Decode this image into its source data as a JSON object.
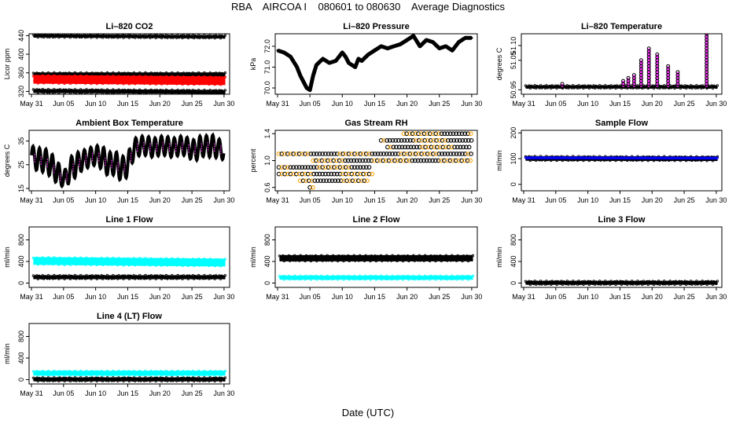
{
  "page": {
    "title": "RBA    AIRCOA I    080601 to 080630    Average Diagnostics",
    "xlabel": "Date (UTC)"
  },
  "x_ticks": [
    "May 31",
    "Jun 05",
    "Jun 10",
    "Jun 15",
    "Jun 20",
    "Jun 25",
    "Jun 30"
  ],
  "x_range_days": [
    0,
    30.5
  ],
  "chart_data": [
    {
      "id": "co2",
      "type": "scatter",
      "title": "Li–820 CO2",
      "ylabel": "Licor ppm",
      "ylim": [
        314,
        444
      ],
      "yticks": [
        "320",
        "360",
        "400",
        "440"
      ],
      "ytick_values": [
        320,
        360,
        400,
        440
      ],
      "series": [
        {
          "kind": "band",
          "color": "#000000",
          "y_start": 439.5,
          "y_end": 437.5,
          "thickness": 4
        },
        {
          "kind": "band",
          "color": "#000000",
          "y_start": 355,
          "y_end": 355,
          "thickness": 7
        },
        {
          "kind": "band",
          "color": "#ff0000",
          "y_start": 346,
          "y_end": 343,
          "thickness": 11
        },
        {
          "kind": "band",
          "color": "#000000",
          "y_start": 321,
          "y_end": 319,
          "thickness": 5
        }
      ]
    },
    {
      "id": "pressure",
      "type": "line",
      "title": "Li–820 Pressure",
      "ylabel": "kPa",
      "ylim": [
        69.7,
        72.6
      ],
      "yticks": [
        "70.0",
        "71.0",
        "72.0"
      ],
      "ytick_values": [
        70.0,
        71.0,
        72.0
      ],
      "series": [
        {
          "kind": "curve",
          "color": "#000000",
          "x": [
            0,
            1,
            2,
            3,
            3.5,
            4,
            4.5,
            5,
            5.5,
            6,
            7,
            8,
            9,
            10,
            10.5,
            11,
            12,
            12.5,
            13,
            14,
            15,
            16,
            17,
            18,
            19,
            20,
            21,
            22,
            23,
            24,
            25,
            26,
            27,
            28,
            29,
            30
          ],
          "y": [
            71.8,
            71.7,
            71.5,
            71.0,
            70.6,
            70.3,
            70.0,
            69.9,
            70.6,
            71.1,
            71.4,
            71.2,
            71.3,
            71.7,
            71.5,
            71.2,
            71.0,
            71.4,
            71.3,
            71.6,
            71.8,
            72.0,
            71.9,
            72.0,
            72.1,
            72.3,
            72.5,
            72.0,
            72.3,
            72.2,
            71.9,
            72.0,
            71.8,
            72.2,
            72.4,
            72.4
          ]
        }
      ]
    },
    {
      "id": "temperature",
      "type": "scatter",
      "title": "Li–820 Temperature",
      "ylabel": "degrees C",
      "ylim": [
        50.935,
        51.14
      ],
      "yticks": [
        "50.95",
        "51.05",
        "51.10"
      ],
      "ytick_values": [
        50.95,
        51.05,
        51.1
      ],
      "series": [
        {
          "kind": "band",
          "color": "#000000",
          "y_start": 50.96,
          "y_end": 50.96,
          "thickness": 4
        },
        {
          "kind": "spikes",
          "color": "#ff33ff",
          "base": 50.96,
          "x": [
            6,
            15.5,
            16.3,
            17.2,
            18.3,
            19.5,
            20.8,
            22.5,
            24.0,
            28.5
          ],
          "y": [
            50.97,
            50.98,
            50.99,
            51.0,
            51.05,
            51.09,
            51.07,
            51.03,
            51.01,
            51.14
          ]
        }
      ]
    },
    {
      "id": "ambient_box",
      "type": "line",
      "title": "Ambient Box Temperature",
      "ylabel": "degrees C",
      "ylim": [
        14.0,
        39.5
      ],
      "yticks": [
        "15",
        "25",
        "35"
      ],
      "ytick_values": [
        15,
        25,
        35
      ],
      "series": [
        {
          "kind": "diurnal",
          "color": "#000000",
          "alt_color": "#ff33ff",
          "x": [
            0,
            1,
            2,
            3,
            4,
            4.5,
            5,
            5.5,
            6,
            7,
            8,
            9,
            10,
            11,
            12,
            13,
            14,
            15,
            16,
            17,
            18,
            19,
            20,
            21,
            22,
            23,
            24,
            25,
            26,
            27,
            28,
            29,
            30
          ],
          "center": [
            29,
            27,
            27,
            25,
            22,
            20,
            19,
            20,
            23,
            25,
            27,
            28,
            29,
            28,
            25,
            26,
            23,
            25,
            32,
            33,
            33,
            32,
            33,
            33,
            32,
            33,
            33,
            31,
            32,
            33,
            33,
            32,
            31
          ],
          "amplitude": [
            4,
            5,
            5,
            5,
            5,
            4,
            3,
            4,
            5,
            5,
            4,
            4,
            4,
            5,
            5,
            5,
            5,
            5,
            4,
            4,
            4,
            4,
            4,
            4,
            4,
            4,
            4,
            4,
            5,
            4,
            5,
            4,
            4
          ]
        }
      ]
    },
    {
      "id": "rh",
      "type": "scatter",
      "title": "Gas Stream RH",
      "ylabel": "percent",
      "ylim": [
        0.55,
        1.45
      ],
      "yticks": [
        "0.6",
        "1.0",
        "1.4"
      ],
      "ytick_values": [
        0.6,
        1.0,
        1.4
      ],
      "series": [
        {
          "kind": "levels",
          "color": "#000000",
          "alt_color": "#ffa500",
          "levels": [
            {
              "y": 1.4,
              "x_start": 19.5,
              "x_end": 30.0
            },
            {
              "y": 1.3,
              "x_start": 16.0,
              "x_end": 30.0
            },
            {
              "y": 1.2,
              "x_start": 17.0,
              "x_end": 30.0
            },
            {
              "y": 1.1,
              "x_start": 0.2,
              "x_end": 30.0
            },
            {
              "y": 1.0,
              "x_start": 5.5,
              "x_end": 30.0
            },
            {
              "y": 0.9,
              "x_start": 0.2,
              "x_end": 14.5
            },
            {
              "y": 0.8,
              "x_start": 0.2,
              "x_end": 15.0
            },
            {
              "y": 0.7,
              "x_start": 3.5,
              "x_end": 14.0
            },
            {
              "y": 0.6,
              "x_start": 5.0,
              "x_end": 5.8
            }
          ]
        }
      ]
    },
    {
      "id": "sample_flow",
      "type": "line",
      "title": "Sample Flow",
      "ylabel": "ml/min",
      "ylim": [
        -25,
        210
      ],
      "yticks": [
        "0",
        "100",
        "200"
      ],
      "ytick_values": [
        0,
        100,
        200
      ],
      "series": [
        {
          "kind": "band",
          "color": "#000000",
          "y_start": 101,
          "y_end": 100,
          "thickness": 6
        },
        {
          "kind": "band",
          "color": "#0000ff",
          "y_start": 103,
          "y_end": 102,
          "thickness": 1
        }
      ]
    },
    {
      "id": "line1",
      "type": "scatter",
      "title": "Line 1 Flow",
      "ylabel": "ml/min",
      "ylim": [
        -80,
        1040
      ],
      "yticks": [
        "0",
        "400",
        "800"
      ],
      "ytick_values": [
        0,
        400,
        800
      ],
      "series": [
        {
          "kind": "band",
          "color": "#00ffff",
          "y_start": 410,
          "y_end": 380,
          "thickness": 10
        },
        {
          "kind": "band",
          "color": "#000000",
          "y_start": 110,
          "y_end": 110,
          "thickness": 5
        }
      ]
    },
    {
      "id": "line2",
      "type": "scatter",
      "title": "Line 2 Flow",
      "ylabel": "ml/min",
      "ylim": [
        -80,
        1040
      ],
      "yticks": [
        "0",
        "400",
        "800"
      ],
      "ytick_values": [
        0,
        400,
        800
      ],
      "series": [
        {
          "kind": "band",
          "color": "#000000",
          "y_start": 460,
          "y_end": 460,
          "thickness": 8
        },
        {
          "kind": "band",
          "color": "#00ffff",
          "y_start": 100,
          "y_end": 100,
          "thickness": 5
        }
      ]
    },
    {
      "id": "line3",
      "type": "scatter",
      "title": "Line 3 Flow",
      "ylabel": "ml/min",
      "ylim": [
        -80,
        1040
      ],
      "yticks": [
        "0",
        "400",
        "800"
      ],
      "ytick_values": [
        0,
        400,
        800
      ],
      "series": [
        {
          "kind": "band",
          "color": "#000000",
          "y_start": 5,
          "y_end": 5,
          "thickness": 5
        }
      ]
    },
    {
      "id": "line4",
      "type": "scatter",
      "title": "Line 4 (LT) Flow",
      "ylabel": "ml/min",
      "ylim": [
        -80,
        1040
      ],
      "yticks": [
        "0",
        "400",
        "800"
      ],
      "ytick_values": [
        0,
        400,
        800
      ],
      "series": [
        {
          "kind": "band",
          "color": "#00ffff",
          "y_start": 120,
          "y_end": 120,
          "thickness": 6
        },
        {
          "kind": "band",
          "color": "#000000",
          "y_start": 5,
          "y_end": 5,
          "thickness": 5
        }
      ]
    }
  ]
}
